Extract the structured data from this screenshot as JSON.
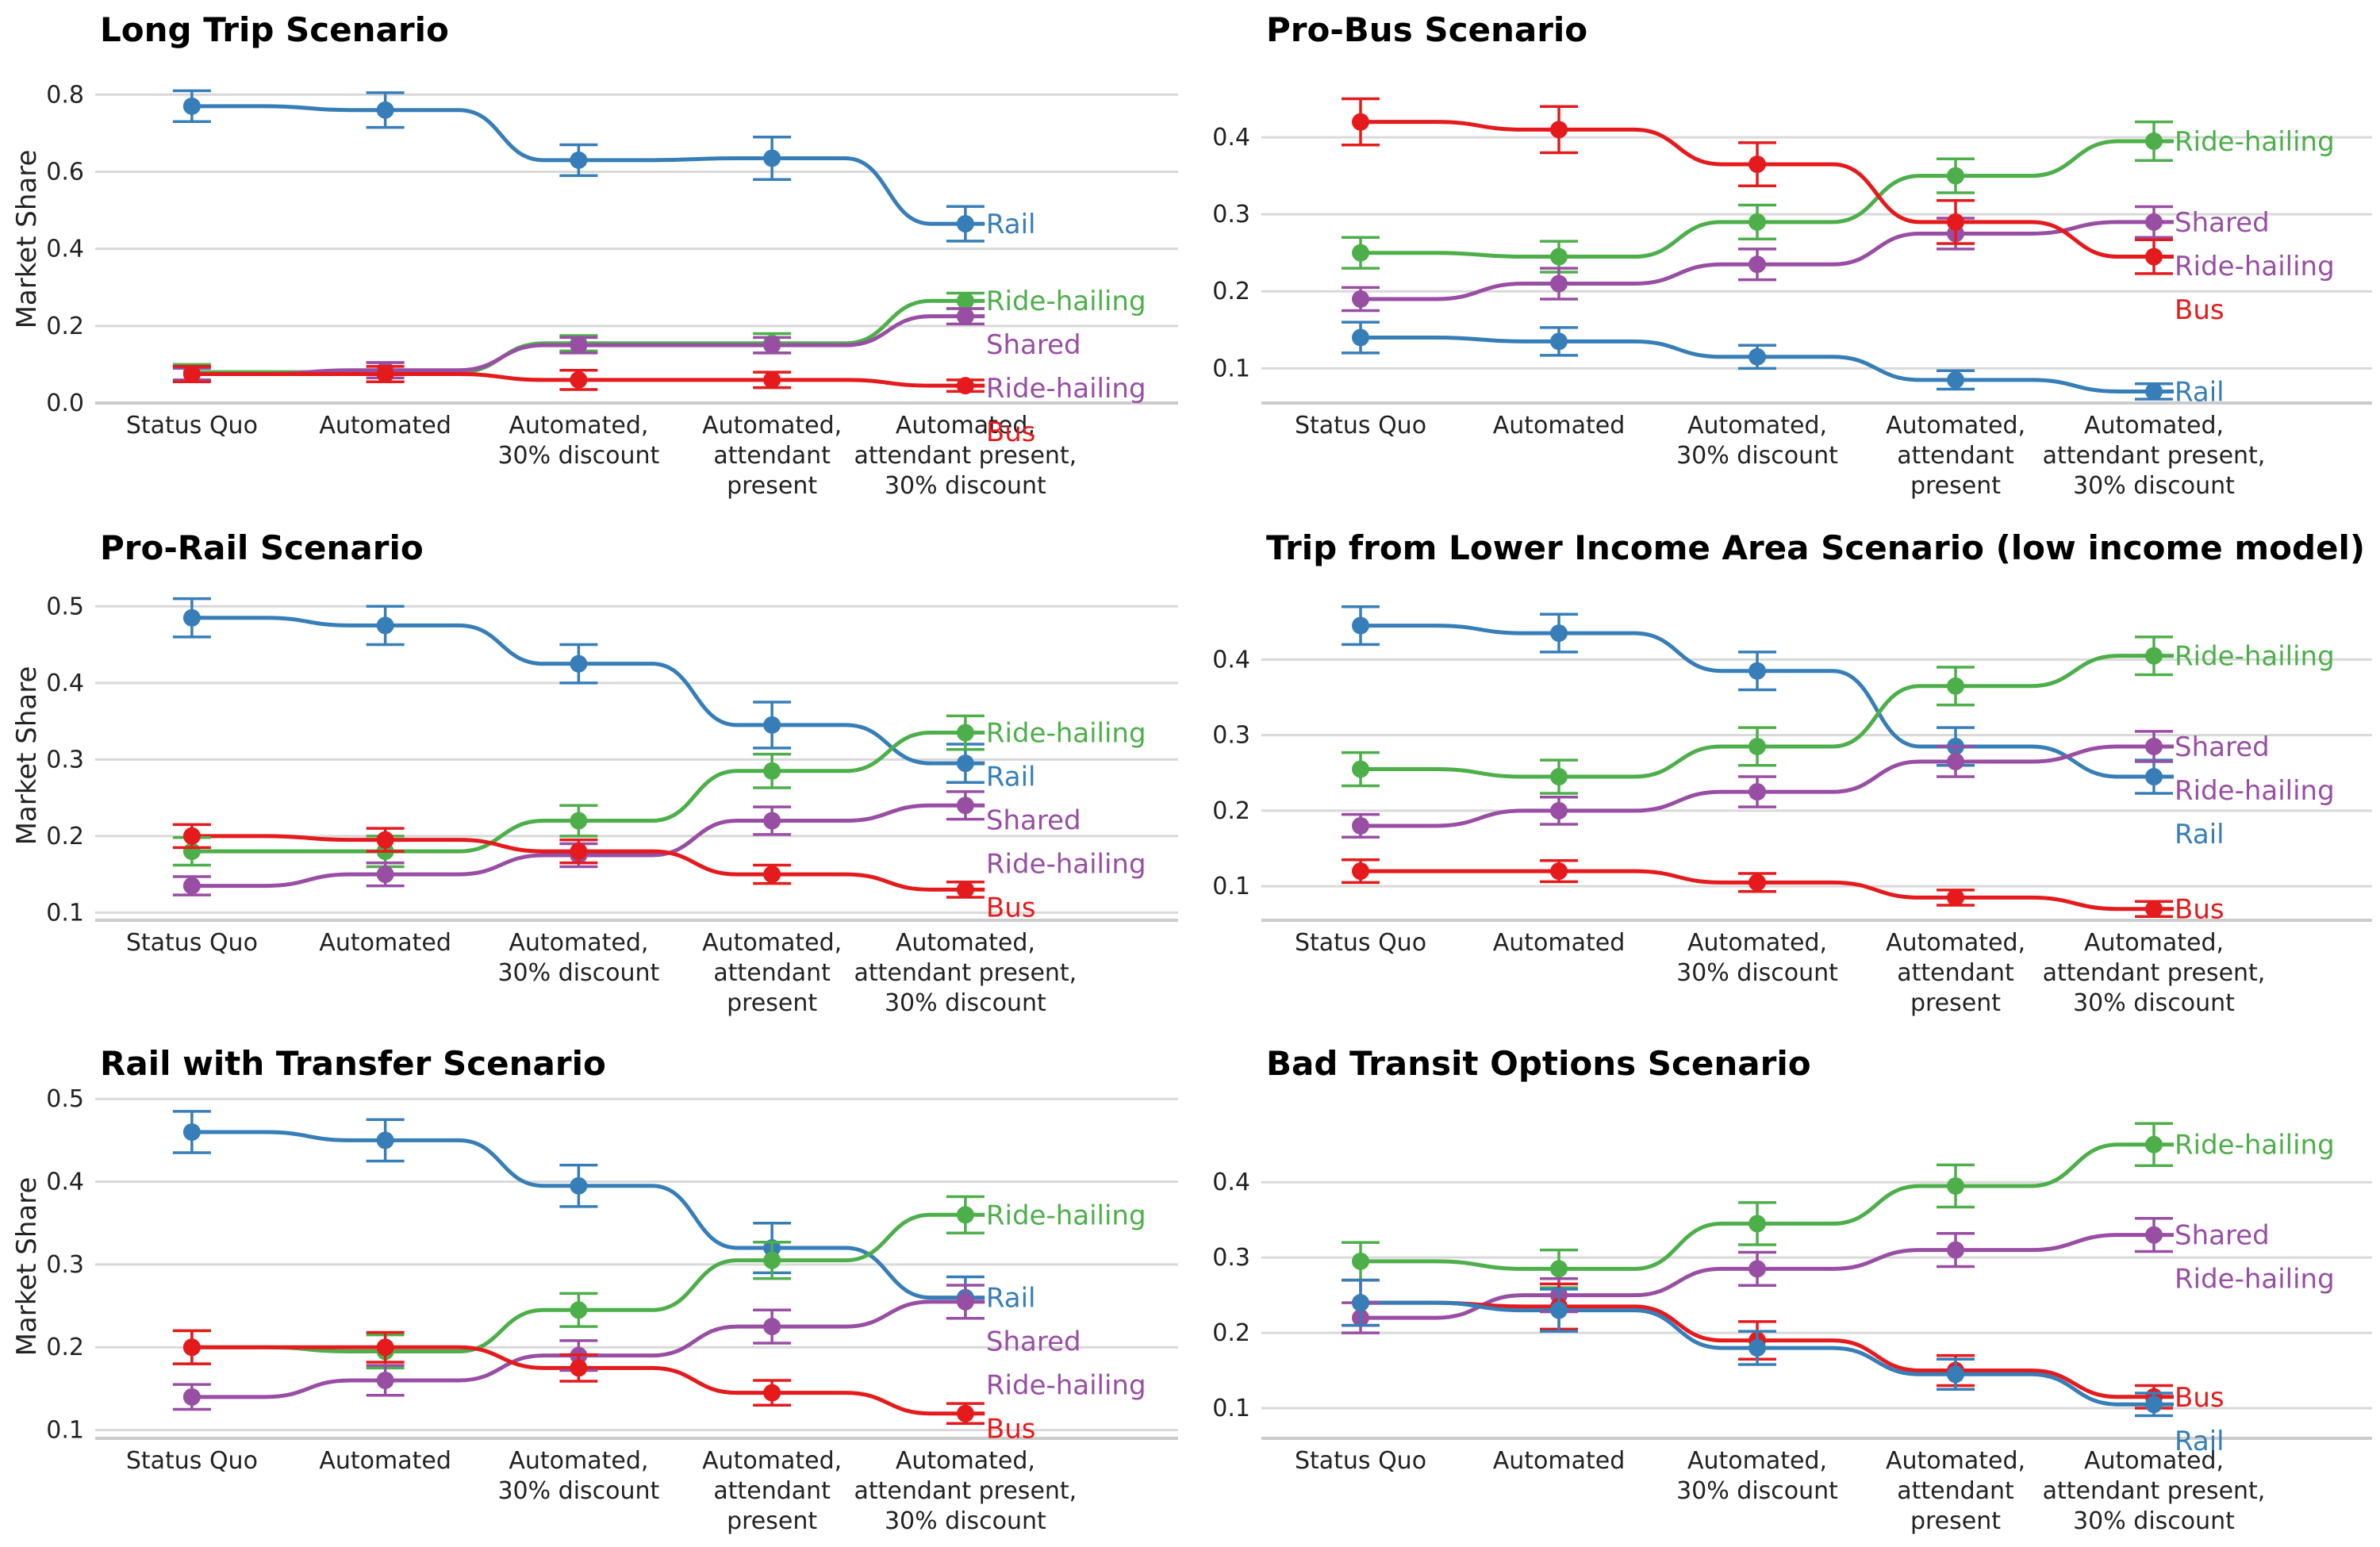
{
  "colors": {
    "Rail": "#377eb8",
    "Bus": "#e41a1c",
    "Ride-hailing": "#4daf4a",
    "Shared Ride-hailing": "#984ea3",
    "grid": "#d9d9d9"
  },
  "categories": [
    "Status Quo",
    "Automated",
    "Automated,\n30% discount",
    "Automated,\nattendant\npresent",
    "Automated,\nattendant present,\n30% discount"
  ],
  "y_axis_label": "Market Share",
  "chart_data": [
    {
      "type": "line",
      "title": "Long Trip Scenario",
      "ylabel": "Market Share",
      "ylim": [
        0,
        0.85
      ],
      "yticks": [
        0.0,
        0.2,
        0.4,
        0.6,
        0.8
      ],
      "tick_format": 1,
      "series": [
        {
          "key": "Rail",
          "values": [
            0.77,
            0.76,
            0.63,
            0.635,
            0.465
          ],
          "err": [
            0.04,
            0.045,
            0.04,
            0.055,
            0.045
          ],
          "label": [
            "Rail"
          ]
        },
        {
          "key": "Ride-hailing",
          "values": [
            0.08,
            0.08,
            0.155,
            0.155,
            0.265
          ],
          "err": [
            0.02,
            0.025,
            0.02,
            0.025,
            0.02
          ],
          "label": [
            "Ride-hailing"
          ]
        },
        {
          "key": "Shared Ride-hailing",
          "values": [
            0.075,
            0.085,
            0.15,
            0.15,
            0.225
          ],
          "err": [
            0.015,
            0.02,
            0.02,
            0.02,
            0.02
          ],
          "label": [
            "Shared",
            "Ride-hailing"
          ]
        },
        {
          "key": "Bus",
          "values": [
            0.075,
            0.075,
            0.06,
            0.06,
            0.045
          ],
          "err": [
            0.02,
            0.02,
            0.025,
            0.02,
            0.015
          ],
          "label": [
            "Bus"
          ]
        }
      ]
    },
    {
      "type": "line",
      "title": "Pro-Bus Scenario",
      "ylim": [
        0.055,
        0.465
      ],
      "yticks": [
        0.1,
        0.2,
        0.3,
        0.4
      ],
      "tick_format": 1,
      "series": [
        {
          "key": "Ride-hailing",
          "values": [
            0.25,
            0.245,
            0.29,
            0.35,
            0.395
          ],
          "err": [
            0.02,
            0.02,
            0.022,
            0.022,
            0.025
          ],
          "label": [
            "Ride-hailing"
          ]
        },
        {
          "key": "Shared Ride-hailing",
          "values": [
            0.19,
            0.21,
            0.235,
            0.275,
            0.29
          ],
          "err": [
            0.015,
            0.02,
            0.02,
            0.02,
            0.02
          ],
          "label": [
            "Shared",
            "Ride-hailing"
          ]
        },
        {
          "key": "Bus",
          "values": [
            0.42,
            0.41,
            0.365,
            0.29,
            0.245
          ],
          "err": [
            0.03,
            0.03,
            0.028,
            0.028,
            0.022
          ],
          "label": [
            "Bus"
          ]
        },
        {
          "key": "Rail",
          "values": [
            0.14,
            0.135,
            0.115,
            0.085,
            0.07
          ],
          "err": [
            0.02,
            0.018,
            0.015,
            0.012,
            0.01
          ],
          "label": [
            "Rail"
          ]
        }
      ]
    },
    {
      "type": "line",
      "title": "Pro-Rail Scenario",
      "ylabel": "Market Share",
      "ylim": [
        0.09,
        0.52
      ],
      "yticks": [
        0.1,
        0.2,
        0.3,
        0.4,
        0.5
      ],
      "tick_format": 1,
      "series": [
        {
          "key": "Rail",
          "values": [
            0.485,
            0.475,
            0.425,
            0.345,
            0.295
          ],
          "err": [
            0.025,
            0.025,
            0.025,
            0.03,
            0.025
          ],
          "label": [
            "Rail"
          ]
        },
        {
          "key": "Ride-hailing",
          "values": [
            0.18,
            0.18,
            0.22,
            0.285,
            0.335
          ],
          "err": [
            0.018,
            0.02,
            0.02,
            0.022,
            0.022
          ],
          "label": [
            "Ride-hailing"
          ]
        },
        {
          "key": "Shared Ride-hailing",
          "values": [
            0.135,
            0.15,
            0.175,
            0.22,
            0.24
          ],
          "err": [
            0.012,
            0.015,
            0.015,
            0.018,
            0.018
          ],
          "label": [
            "Shared",
            "Ride-hailing"
          ]
        },
        {
          "key": "Bus",
          "values": [
            0.2,
            0.195,
            0.18,
            0.15,
            0.13
          ],
          "err": [
            0.015,
            0.015,
            0.015,
            0.012,
            0.01
          ],
          "label": [
            "Bus"
          ]
        }
      ]
    },
    {
      "type": "line",
      "title": "Trip from Lower Income Area Scenario (low income model)",
      "ylim": [
        0.055,
        0.475
      ],
      "yticks": [
        0.1,
        0.2,
        0.3,
        0.4
      ],
      "tick_format": 1,
      "series": [
        {
          "key": "Rail",
          "values": [
            0.445,
            0.435,
            0.385,
            0.285,
            0.245
          ],
          "err": [
            0.025,
            0.025,
            0.025,
            0.025,
            0.022
          ],
          "label": [
            "Rail"
          ]
        },
        {
          "key": "Ride-hailing",
          "values": [
            0.255,
            0.245,
            0.285,
            0.365,
            0.405
          ],
          "err": [
            0.022,
            0.022,
            0.025,
            0.025,
            0.025
          ],
          "label": [
            "Ride-hailing"
          ]
        },
        {
          "key": "Shared Ride-hailing",
          "values": [
            0.18,
            0.2,
            0.225,
            0.265,
            0.285
          ],
          "err": [
            0.015,
            0.018,
            0.02,
            0.02,
            0.02
          ],
          "label": [
            "Shared",
            "Ride-hailing"
          ]
        },
        {
          "key": "Bus",
          "values": [
            0.12,
            0.12,
            0.105,
            0.085,
            0.07
          ],
          "err": [
            0.015,
            0.014,
            0.012,
            0.01,
            0.01
          ],
          "label": [
            "Bus"
          ]
        }
      ]
    },
    {
      "type": "line",
      "title": "Rail with Transfer Scenario",
      "ylabel": "Market Share",
      "ylim": [
        0.09,
        0.505
      ],
      "yticks": [
        0.1,
        0.2,
        0.3,
        0.4,
        0.5
      ],
      "tick_format": 1,
      "series": [
        {
          "key": "Rail",
          "values": [
            0.46,
            0.45,
            0.395,
            0.32,
            0.26
          ],
          "err": [
            0.025,
            0.025,
            0.025,
            0.03,
            0.025
          ],
          "label": [
            "Rail"
          ]
        },
        {
          "key": "Ride-hailing",
          "values": [
            0.2,
            0.195,
            0.245,
            0.305,
            0.36
          ],
          "err": [
            0.02,
            0.02,
            0.02,
            0.022,
            0.022
          ],
          "label": [
            "Ride-hailing"
          ]
        },
        {
          "key": "Shared Ride-hailing",
          "values": [
            0.14,
            0.16,
            0.19,
            0.225,
            0.255
          ],
          "err": [
            0.015,
            0.018,
            0.018,
            0.02,
            0.02
          ],
          "label": [
            "Shared",
            "Ride-hailing"
          ]
        },
        {
          "key": "Bus",
          "values": [
            0.2,
            0.2,
            0.175,
            0.145,
            0.12
          ],
          "err": [
            0.02,
            0.018,
            0.016,
            0.015,
            0.012
          ],
          "label": [
            "Bus"
          ]
        }
      ]
    },
    {
      "type": "line",
      "title": "Bad Transit Options Scenario",
      "ylim": [
        0.06,
        0.495
      ],
      "yticks": [
        0.1,
        0.2,
        0.3,
        0.4
      ],
      "tick_format": 1,
      "series": [
        {
          "key": "Ride-hailing",
          "values": [
            0.295,
            0.285,
            0.345,
            0.395,
            0.45
          ],
          "err": [
            0.025,
            0.025,
            0.028,
            0.028,
            0.028
          ],
          "label": [
            "Ride-hailing"
          ]
        },
        {
          "key": "Shared Ride-hailing",
          "values": [
            0.22,
            0.25,
            0.285,
            0.31,
            0.33
          ],
          "err": [
            0.02,
            0.022,
            0.022,
            0.022,
            0.022
          ],
          "label": [
            "Shared",
            "Ride-hailing"
          ]
        },
        {
          "key": "Bus",
          "values": [
            0.24,
            0.235,
            0.19,
            0.15,
            0.115
          ],
          "err": [
            0.03,
            0.03,
            0.025,
            0.02,
            0.015
          ],
          "label": [
            "Bus"
          ]
        },
        {
          "key": "Rail",
          "values": [
            0.24,
            0.23,
            0.18,
            0.145,
            0.105
          ],
          "err": [
            0.03,
            0.028,
            0.022,
            0.02,
            0.015
          ],
          "label": [
            "Rail"
          ]
        }
      ]
    }
  ]
}
